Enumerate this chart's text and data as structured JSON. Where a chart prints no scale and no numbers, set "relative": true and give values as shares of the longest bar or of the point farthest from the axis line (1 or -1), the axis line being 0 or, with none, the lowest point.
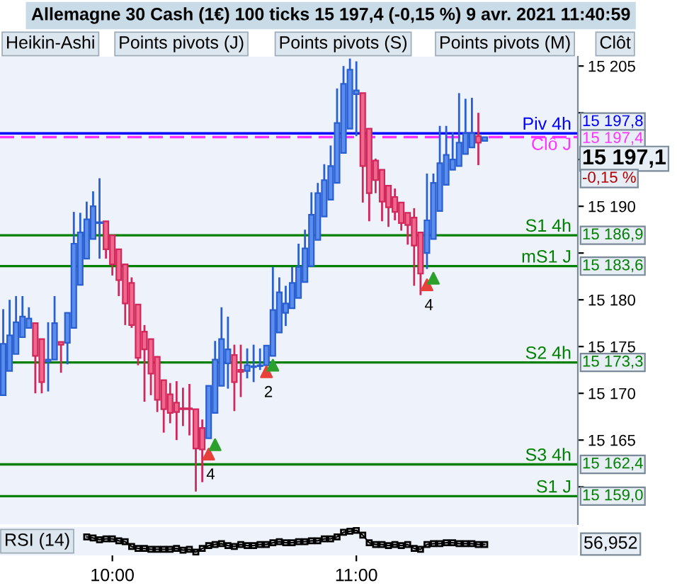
{
  "chart_data": [
    {
      "type": "candlestick",
      "title": "Allemagne 30 Cash (1€) 100 ticks 15 197,4 (-0,15 %) 9 avr. 2021 11:40:59",
      "categories": [
        null,
        null,
        null,
        null,
        null,
        null,
        null,
        null,
        null,
        null,
        null,
        null,
        null,
        null,
        null,
        null,
        null,
        null,
        null,
        null,
        null,
        null,
        null,
        null,
        null,
        null,
        null,
        null,
        null,
        null,
        null,
        null,
        null,
        null,
        null,
        null,
        null,
        null,
        null,
        null,
        null,
        null,
        null,
        null,
        null,
        null,
        null,
        null,
        null,
        null,
        null,
        null,
        null,
        null,
        null,
        null,
        null,
        null,
        null,
        null,
        null,
        null,
        null,
        null,
        null,
        null,
        null,
        null,
        null,
        null,
        null,
        null,
        null,
        null,
        null,
        null,
        null,
        null,
        null,
        null,
        null,
        null,
        null,
        null,
        null,
        null,
        null,
        null,
        null,
        null
      ],
      "ohlc": [
        [
          15169.8,
          15179,
          15169.8,
          15175.3
        ],
        [
          15172.4,
          15180,
          15172.4,
          15176.2
        ],
        [
          15174.2,
          15180.4,
          15174.2,
          15177.6
        ],
        [
          15176,
          15180.4,
          15176,
          15178.2
        ],
        [
          15177,
          15179.2,
          15177,
          15178
        ],
        [
          15177.5,
          15177.5,
          15170,
          15174
        ],
        [
          15175.8,
          15175.8,
          15170,
          15171.2
        ],
        [
          15173.4,
          15177.6,
          15170.2,
          15173.6
        ],
        [
          15173.6,
          15180.4,
          15173.6,
          15177.5
        ],
        [
          15175.5,
          15175.5,
          15172.2,
          15175.2
        ],
        [
          15175.4,
          15178.6,
          15173.1,
          15178.6
        ],
        [
          15177,
          15189.4,
          15177,
          15186
        ],
        [
          15181.6,
          15189.3,
          15181.6,
          15187.2
        ],
        [
          15184.4,
          15190.5,
          15184.4,
          15188.6
        ],
        [
          15186.5,
          15191.6,
          15186.5,
          15190
        ],
        [
          15188.2,
          15193,
          15184.4,
          15188.3
        ],
        [
          15188.4,
          15188.4,
          15184.4,
          15185.4
        ],
        [
          15186.9,
          15186.9,
          15182.6,
          15183.8
        ],
        [
          15185.4,
          15185.4,
          15180.4,
          15182.1
        ],
        [
          15183.8,
          15183.8,
          15177.3,
          15179.6
        ],
        [
          15181.8,
          15182.4,
          15177,
          15177.3
        ],
        [
          15179.5,
          15179.5,
          15173,
          15173.8
        ],
        [
          15176.6,
          15177.3,
          15169.1,
          15174.7
        ],
        [
          15175.8,
          15175.8,
          15169.8,
          15172.1
        ],
        [
          15173.9,
          15173.9,
          15168,
          15169.3
        ],
        [
          15171.4,
          15171.4,
          15165.8,
          15168.3
        ],
        [
          15169.9,
          15171.1,
          15166.8,
          15167.9
        ],
        [
          15169,
          15171.3,
          15165,
          15168
        ],
        [
          15168.4,
          15170.6,
          15166.5,
          15168.3
        ],
        [
          15168.4,
          15171,
          15165.5,
          15168.3
        ],
        [
          15168.3,
          15168.3,
          15159.5,
          15164.1
        ],
        [
          15166.3,
          15167.2,
          15160.5,
          15164
        ],
        [
          15165.2,
          15170.8,
          15165.2,
          15170.8
        ],
        [
          15167.9,
          15175.6,
          15167.9,
          15173.6
        ],
        [
          15170.8,
          15179.2,
          15170.8,
          15175.8
        ],
        [
          15173.2,
          15178.2,
          15170.5,
          15174.7
        ],
        [
          15174.1,
          15175.2,
          15168.1,
          15171.2
        ],
        [
          15172.5,
          15175.2,
          15169.6,
          15172.3
        ],
        [
          15172.4,
          15174.8,
          15171.6,
          15173
        ],
        [
          15172.8,
          15175.2,
          15171.2,
          15172.9
        ],
        [
          15172.9,
          15174.8,
          15172.5,
          15173
        ],
        [
          15173,
          15175.1,
          15173,
          15175.1
        ],
        [
          15174,
          15183.5,
          15174,
          15178.9
        ],
        [
          15176.5,
          15182.4,
          15176.5,
          15180.8
        ],
        [
          15178.6,
          15181.5,
          15177.2,
          15179.6
        ],
        [
          15179.1,
          15183.5,
          15179.1,
          15181.8
        ],
        [
          15180.2,
          15186,
          15180.2,
          15183.5
        ],
        [
          15181.9,
          15187.5,
          15181.9,
          15185.5
        ],
        [
          15183.6,
          15191.5,
          15183.6,
          15189.1
        ],
        [
          15186.4,
          15192.5,
          15186.4,
          15191.4
        ],
        [
          15188.9,
          15194.5,
          15188.9,
          15192.8
        ],
        [
          15190.7,
          15196.5,
          15190.7,
          15194.3
        ],
        [
          15192.5,
          15202.6,
          15192.5,
          15198.9
        ],
        [
          15195.7,
          15205,
          15195.7,
          15203.1
        ],
        [
          15198.3,
          15205.8,
          15198.3,
          15204.6
        ],
        [
          15202,
          15205.5,
          15197.5,
          15202.4
        ],
        [
          15202.1,
          15202.1,
          15190.4,
          15194.3
        ],
        [
          15198.3,
          15198.3,
          15188.4,
          15191.4
        ],
        [
          15194.9,
          15195.1,
          15191.4,
          15192.8
        ],
        [
          15193.9,
          15193.9,
          15188.4,
          15190.5
        ],
        [
          15192.2,
          15192.2,
          15187.8,
          15189.9
        ],
        [
          15191,
          15191.9,
          15188.5,
          15189.4
        ],
        [
          15190.4,
          15190.4,
          15187.4,
          15188.2
        ],
        [
          15189.3,
          15189.3,
          15185.9,
          15188
        ],
        [
          15188.8,
          15189.8,
          15181.5,
          15185.8
        ],
        [
          15187.2,
          15187.2,
          15180.5,
          15182.8
        ],
        [
          15185,
          15193.5,
          15183.3,
          15188.5
        ],
        [
          15186.5,
          15193.5,
          15186.5,
          15192.5
        ],
        [
          15189.5,
          15198.6,
          15189.5,
          15194.6
        ],
        [
          15192.3,
          15198.6,
          15192.3,
          15195.5
        ],
        [
          15193.9,
          15197.9,
          15193.9,
          15195
        ],
        [
          15194.3,
          15202.1,
          15194.3,
          15196.8
        ],
        [
          15195.6,
          15201.5,
          15195.6,
          15197.8
        ],
        [
          15196.3,
          15201.6,
          15196.3,
          15197.8
        ],
        [
          15197.5,
          15200,
          15194.4,
          15196.8
        ],
        [
          15197,
          15197.4,
          15197,
          15197.4
        ],
        null,
        null,
        null,
        null,
        null,
        null,
        null,
        null,
        null,
        null,
        null,
        null,
        null,
        null
      ],
      "colors": [
        "#5b8def",
        "#5b8def",
        "#5b8def",
        "#5b8def",
        "#5b8def",
        "#f0668c",
        "#f0668c",
        "#5b8def",
        "#5b8def",
        "#f0668c",
        "#5b8def",
        "#5b8def",
        "#5b8def",
        "#5b8def",
        "#5b8def",
        "#5b8def",
        "#f0668c",
        "#f0668c",
        "#f0668c",
        "#f0668c",
        "#f0668c",
        "#f0668c",
        "#f0668c",
        "#f0668c",
        "#f0668c",
        "#f0668c",
        "#f0668c",
        "#f0668c",
        "#f0668c",
        "#f0668c",
        "#f0668c",
        "#f0668c",
        "#5b8def",
        "#5b8def",
        "#5b8def",
        "#5b8def",
        "#f0668c",
        "#f0668c",
        "#5b8def",
        "#5b8def",
        "#5b8def",
        "#5b8def",
        "#5b8def",
        "#5b8def",
        "#5b8def",
        "#5b8def",
        "#5b8def",
        "#5b8def",
        "#5b8def",
        "#5b8def",
        "#5b8def",
        "#5b8def",
        "#5b8def",
        "#5b8def",
        "#5b8def",
        "#5b8def",
        "#f0668c",
        "#f0668c",
        "#f0668c",
        "#f0668c",
        "#f0668c",
        "#f0668c",
        "#f0668c",
        "#f0668c",
        "#f0668c",
        "#f0668c",
        "#5b8def",
        "#5b8def",
        "#5b8def",
        "#5b8def",
        "#5b8def",
        "#5b8def",
        "#5b8def",
        "#5b8def",
        "#f0668c",
        "#5b8def",
        null,
        null,
        null,
        null,
        null,
        null,
        null,
        null,
        null,
        null,
        null,
        null,
        null,
        null
      ],
      "series": [
        {
          "type": "scatter",
          "color": "#e8403a",
          "marker": "triangle",
          "values": [
            null,
            null,
            null,
            null,
            null,
            null,
            null,
            null,
            null,
            null,
            null,
            null,
            null,
            null,
            null,
            null,
            null,
            null,
            null,
            null,
            null,
            null,
            null,
            null,
            null,
            null,
            null,
            null,
            null,
            null,
            null,
            null,
            15163.5,
            null,
            null,
            null,
            null,
            null,
            null,
            null,
            null,
            15172.3,
            null,
            null,
            null,
            null,
            null,
            null,
            null,
            null,
            null,
            null,
            null,
            null,
            null,
            null,
            null,
            null,
            null,
            null,
            null,
            null,
            null,
            null,
            null,
            null,
            15181.6,
            null,
            null,
            null,
            null,
            null,
            null,
            null,
            null,
            null,
            null,
            null,
            null,
            null,
            null,
            null,
            null,
            null,
            null,
            null,
            null,
            null,
            null,
            null
          ]
        },
        {
          "type": "scatter",
          "color": "#2ca02c",
          "marker": "triangle",
          "values": [
            null,
            null,
            null,
            null,
            null,
            null,
            null,
            null,
            null,
            null,
            null,
            null,
            null,
            null,
            null,
            null,
            null,
            null,
            null,
            null,
            null,
            null,
            null,
            null,
            null,
            null,
            null,
            null,
            null,
            null,
            null,
            null,
            null,
            15164.5,
            null,
            null,
            null,
            null,
            null,
            null,
            null,
            null,
            15173,
            null,
            null,
            null,
            null,
            null,
            null,
            null,
            null,
            null,
            null,
            null,
            null,
            null,
            null,
            null,
            null,
            null,
            null,
            null,
            null,
            null,
            null,
            null,
            null,
            15182.3,
            null,
            null,
            null,
            null,
            null,
            null,
            null,
            null,
            null,
            null,
            null,
            null,
            null,
            null,
            null,
            null,
            null,
            null,
            null,
            null,
            null,
            null
          ]
        }
      ],
      "ylim": [
        15156,
        15206
      ],
      "yticks": [
        15205,
        {
          "value": 15200,
          "label": null
        },
        {
          "value": 15195,
          "label": null
        },
        {
          "value": 15190,
          "label": "15 190"
        },
        {
          "value": 15185,
          "label": null
        },
        {
          "value": 15180,
          "label": "15 180"
        },
        {
          "value": 15175,
          "label": "15 175"
        },
        {
          "value": 15170,
          "label": "15 170"
        },
        {
          "value": 15165,
          "label": "15 165"
        },
        {
          "value": 15160,
          "label": null
        }
      ],
      "ref_lines": [
        {
          "axis": "y",
          "value": 15197.8,
          "label": "Piv 4h",
          "color": "#0000ff",
          "line_style": "solid"
        },
        {
          "axis": "y",
          "value": 15197.4,
          "label": "Clô J",
          "color": "#ff33ff",
          "line_style": "dashed"
        },
        {
          "axis": "y",
          "value": 15186.9,
          "label": "S1 4h",
          "color": "#008000",
          "line_style": "solid"
        },
        {
          "axis": "y",
          "value": 15183.6,
          "label": "mS1 J",
          "color": "#008000",
          "line_style": "solid"
        },
        {
          "axis": "y",
          "value": 15173.3,
          "label": "S2 4h",
          "color": "#008000",
          "line_style": "solid"
        },
        {
          "axis": "y",
          "value": 15162.4,
          "label": "S3 4h",
          "color": "#008000",
          "line_style": "solid"
        },
        {
          "axis": "y",
          "value": 15159.0,
          "label": "S1 J",
          "color": "#008000",
          "line_style": "solid"
        }
      ],
      "annotations": [
        "Heikin-Ashi",
        "Points pivots (J)",
        "Points pivots (S)",
        "Points pivots (M)",
        "Clôt",
        "4",
        "2",
        "4",
        "15 197,8",
        "15 197,4",
        "15 186,9",
        "15 183,6",
        "15 173,3",
        "15 162,4",
        "15 159,0",
        "15 197,1",
        "-0,15 %"
      ],
      "tick_labels": "y",
      "grid": false
    },
    {
      "type": "line",
      "relative": true,
      "color": "#000000",
      "marker": "square",
      "categories": [
        null,
        null,
        null,
        null,
        null,
        null,
        null,
        null,
        null,
        null,
        null,
        null,
        null,
        null,
        null,
        null,
        null,
        "10:00",
        null,
        null,
        null,
        null,
        null,
        null,
        null,
        null,
        null,
        null,
        null,
        null,
        null,
        null,
        null,
        null,
        null,
        null,
        null,
        null,
        null,
        null,
        null,
        null,
        null,
        null,
        null,
        null,
        null,
        null,
        null,
        null,
        null,
        null,
        null,
        null,
        null,
        "11:00",
        null,
        null,
        null,
        null,
        null,
        null,
        null,
        null,
        null,
        null,
        null,
        null,
        null,
        null,
        null,
        null,
        null,
        null,
        null,
        null,
        null,
        null,
        null,
        null,
        null,
        null,
        null,
        null,
        null,
        null,
        null,
        null,
        null,
        null
      ],
      "values": [
        null,
        null,
        null,
        null,
        null,
        null,
        null,
        null,
        null,
        null,
        null,
        null,
        null,
        0.7,
        0.65,
        0.57,
        0.61,
        0.61,
        0.52,
        0.48,
        0.26,
        0.17,
        0.17,
        0.13,
        0.13,
        0.13,
        0.13,
        0.17,
        0.09,
        0.13,
        0,
        0.17,
        0.3,
        0.35,
        0.39,
        0.3,
        0.26,
        0.35,
        0.3,
        0.3,
        0.35,
        0.35,
        0.43,
        0.48,
        0.43,
        0.43,
        0.48,
        0.48,
        0.52,
        0.52,
        0.61,
        0.61,
        0.7,
        0.91,
        0.96,
        1,
        0.78,
        0.43,
        0.35,
        0.35,
        0.3,
        0.35,
        0.3,
        0.35,
        0.17,
        0.13,
        0.35,
        0.39,
        0.39,
        0.43,
        0.43,
        0.39,
        0.39,
        0.39,
        0.35,
        0.35,
        null,
        null,
        null,
        null,
        null,
        null,
        null,
        null,
        null,
        null,
        null,
        null,
        null,
        null
      ],
      "annotations": [
        "RSI (14)",
        "56,952"
      ],
      "tick_labels": "x"
    }
  ]
}
